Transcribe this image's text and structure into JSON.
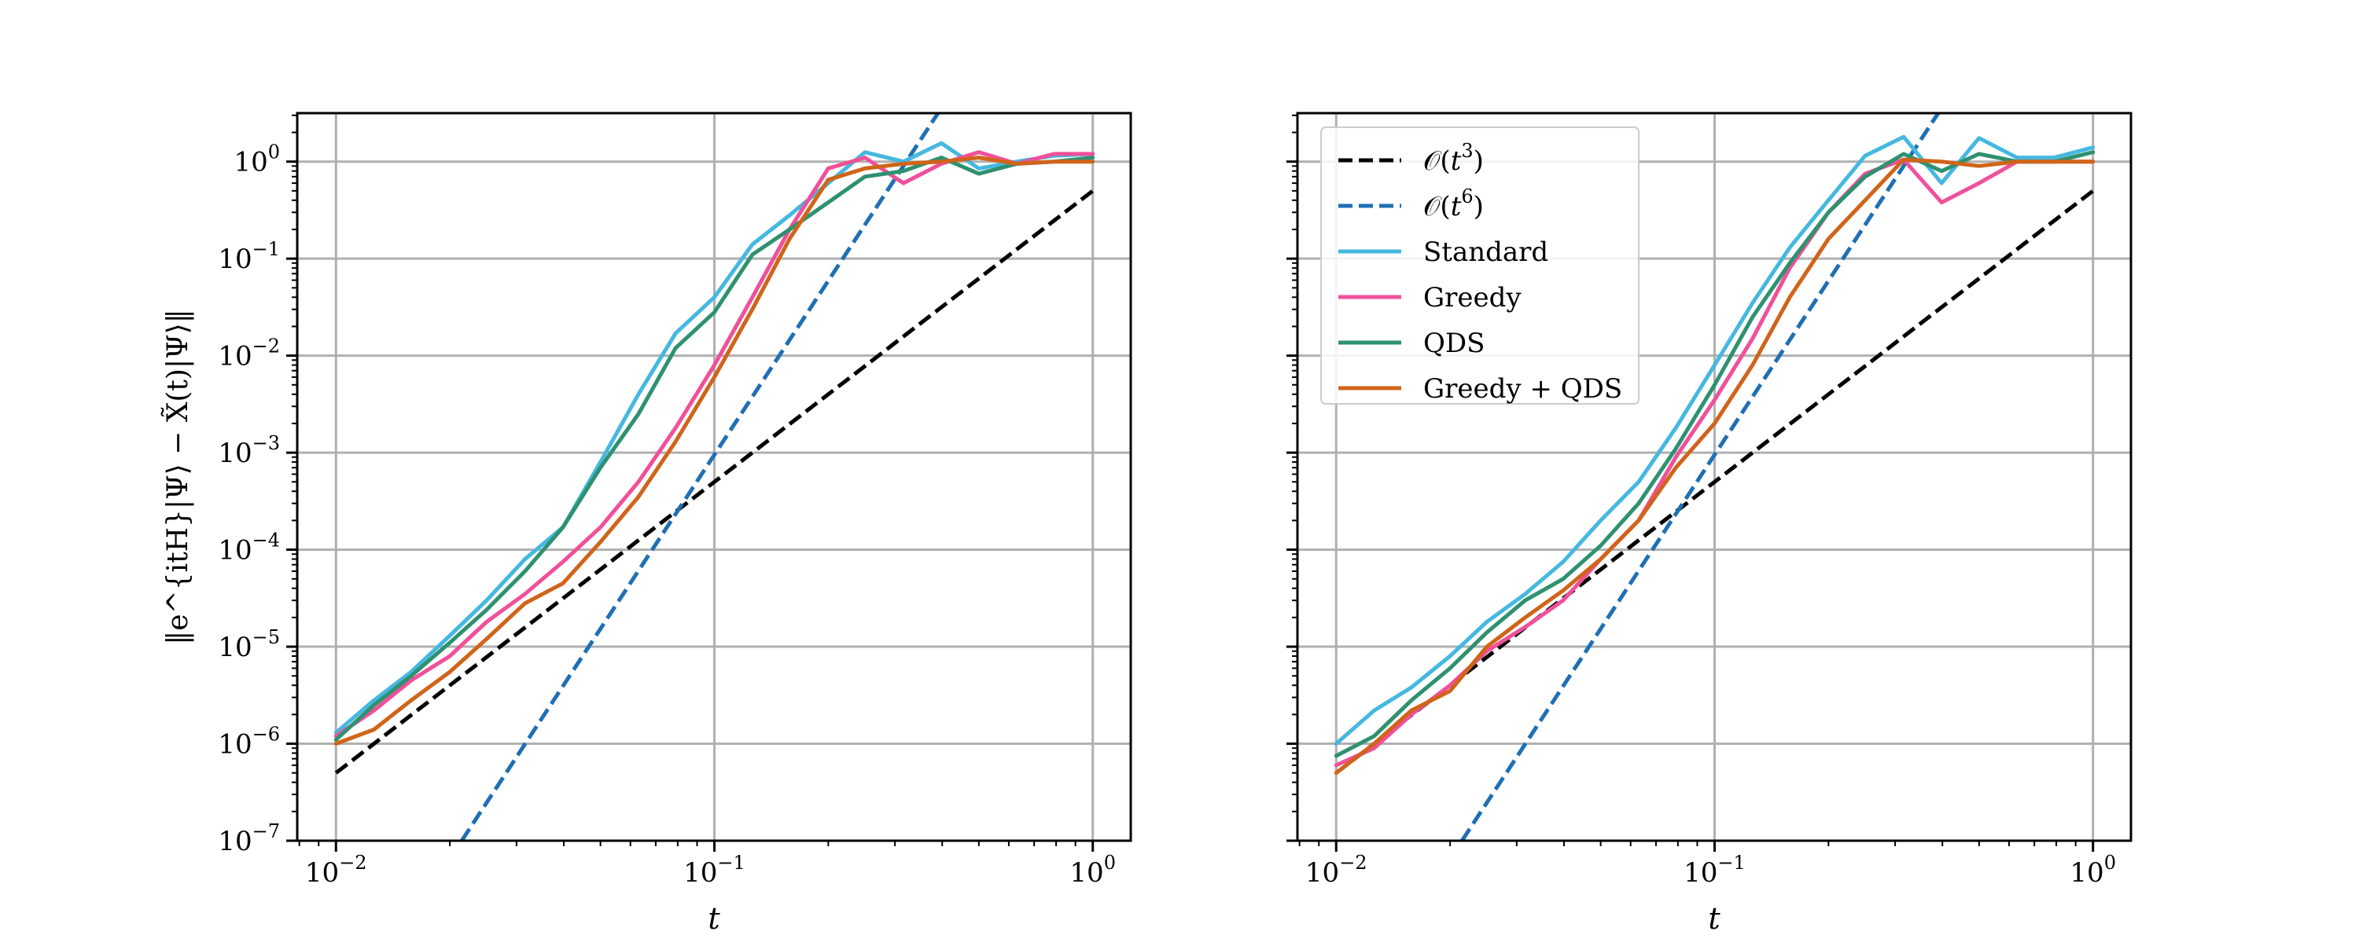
{
  "figure": {
    "ylabel": "‖e^{itH}|Ψ⟩ − X̃(t)|Ψ⟩‖",
    "colors": {
      "ref_t3": "#000000",
      "ref_t6": "#1f6fb4",
      "Standard": "#45b8e0",
      "Greedy": "#f0509a",
      "QDS": "#2e9170",
      "Greedy + QDS": "#d0641a",
      "grid": "#b0b0b0"
    }
  },
  "chart_data": [
    {
      "type": "line",
      "panel": "left",
      "xlabel": "t",
      "ylabel": "‖e^{itH}|Ψ⟩ − X̃(t)|Ψ⟩‖",
      "xscale": "log",
      "yscale": "log",
      "xlim": [
        0.0079,
        1.26
      ],
      "ylim": [
        1e-07,
        3.16
      ],
      "grid": true,
      "legend": false,
      "xticks": [
        {
          "value": 0.01,
          "base": "10",
          "exp": "−2"
        },
        {
          "value": 0.1,
          "base": "10",
          "exp": "−1"
        },
        {
          "value": 1,
          "base": "10",
          "exp": "0"
        }
      ],
      "yticks": [
        {
          "value": 1e-07,
          "base": "10",
          "exp": "−7"
        },
        {
          "value": 1e-06,
          "base": "10",
          "exp": "−6"
        },
        {
          "value": 1e-05,
          "base": "10",
          "exp": "−5"
        },
        {
          "value": 0.0001,
          "base": "10",
          "exp": "−4"
        },
        {
          "value": 0.001,
          "base": "10",
          "exp": "−3"
        },
        {
          "value": 0.01,
          "base": "10",
          "exp": "−2"
        },
        {
          "value": 0.1,
          "base": "10",
          "exp": "−1"
        },
        {
          "value": 1,
          "base": "10",
          "exp": "0"
        }
      ],
      "series": [
        {
          "name": "O(t^3)",
          "key": "ref_t3",
          "dash": true,
          "x": [
            0.01,
            1.0
          ],
          "y": [
            5e-07,
            0.5
          ]
        },
        {
          "name": "O(t^6)",
          "key": "ref_t6",
          "dash": true,
          "x": [
            0.0215,
            0.39
          ],
          "y": [
            1e-07,
            3.16
          ]
        },
        {
          "name": "Standard",
          "key": "Standard",
          "dash": false,
          "x": [
            0.01,
            0.0126,
            0.0158,
            0.02,
            0.025,
            0.0316,
            0.0398,
            0.05,
            0.063,
            0.079,
            0.1,
            0.126,
            0.158,
            0.2,
            0.25,
            0.316,
            0.398,
            0.5,
            0.63,
            0.79,
            1.0
          ],
          "y": [
            1.3e-06,
            2.8e-06,
            5.5e-06,
            1.3e-05,
            3e-05,
            8e-05,
            0.00017,
            0.0008,
            0.004,
            0.017,
            0.04,
            0.14,
            0.28,
            0.6,
            1.25,
            1.0,
            1.55,
            0.85,
            1.0,
            1.15,
            1.2
          ]
        },
        {
          "name": "Greedy",
          "key": "Greedy",
          "dash": false,
          "x": [
            0.01,
            0.0126,
            0.0158,
            0.02,
            0.025,
            0.0316,
            0.0398,
            0.05,
            0.063,
            0.079,
            0.1,
            0.126,
            0.158,
            0.2,
            0.25,
            0.316,
            0.398,
            0.5,
            0.63,
            0.79,
            1.0
          ],
          "y": [
            1.2e-06,
            2.2e-06,
            4.5e-06,
            8e-06,
            1.8e-05,
            3.5e-05,
            7.5e-05,
            0.00017,
            0.0005,
            0.0018,
            0.008,
            0.04,
            0.2,
            0.85,
            1.1,
            0.6,
            0.95,
            1.25,
            0.95,
            1.2,
            1.2
          ]
        },
        {
          "name": "QDS",
          "key": "QDS",
          "dash": false,
          "x": [
            0.01,
            0.0126,
            0.0158,
            0.02,
            0.025,
            0.0316,
            0.0398,
            0.05,
            0.063,
            0.079,
            0.1,
            0.126,
            0.158,
            0.2,
            0.25,
            0.316,
            0.398,
            0.5,
            0.63,
            0.79,
            1.0
          ],
          "y": [
            1.1e-06,
            2.5e-06,
            5e-06,
            1.1e-05,
            2.4e-05,
            6e-05,
            0.00017,
            0.0007,
            0.0025,
            0.012,
            0.028,
            0.11,
            0.2,
            0.38,
            0.7,
            0.8,
            1.1,
            0.75,
            0.95,
            1.0,
            1.1
          ]
        },
        {
          "name": "Greedy + QDS",
          "key": "Greedy + QDS",
          "dash": false,
          "x": [
            0.01,
            0.0126,
            0.0158,
            0.02,
            0.025,
            0.0316,
            0.0398,
            0.05,
            0.063,
            0.079,
            0.1,
            0.126,
            0.158,
            0.2,
            0.25,
            0.316,
            0.398,
            0.5,
            0.63,
            0.79,
            1.0
          ],
          "y": [
            1e-06,
            1.4e-06,
            2.8e-06,
            5.5e-06,
            1.2e-05,
            2.8e-05,
            4.5e-05,
            0.00012,
            0.00035,
            0.0013,
            0.006,
            0.03,
            0.16,
            0.65,
            0.85,
            0.95,
            1.0,
            1.1,
            0.95,
            1.0,
            1.0
          ]
        }
      ]
    },
    {
      "type": "line",
      "panel": "right",
      "xlabel": "t",
      "ylabel": "",
      "xscale": "log",
      "yscale": "log",
      "xlim": [
        0.0079,
        1.26
      ],
      "ylim": [
        1e-07,
        3.16
      ],
      "grid": true,
      "legend": "upper-left",
      "xticks": [
        {
          "value": 0.01,
          "base": "10",
          "exp": "−2"
        },
        {
          "value": 0.1,
          "base": "10",
          "exp": "−1"
        },
        {
          "value": 1,
          "base": "10",
          "exp": "0"
        }
      ],
      "yticks": [
        {
          "value": 1e-07
        },
        {
          "value": 1e-06
        },
        {
          "value": 1e-05
        },
        {
          "value": 0.0001
        },
        {
          "value": 0.001
        },
        {
          "value": 0.01
        },
        {
          "value": 0.1
        },
        {
          "value": 1
        }
      ],
      "series": [
        {
          "name": "O(t^3)",
          "key": "ref_t3",
          "dash": true,
          "x": [
            0.01,
            1.0
          ],
          "y": [
            5e-07,
            0.5
          ]
        },
        {
          "name": "O(t^6)",
          "key": "ref_t6",
          "dash": true,
          "x": [
            0.0215,
            0.39
          ],
          "y": [
            1e-07,
            3.16
          ]
        },
        {
          "name": "Standard",
          "key": "Standard",
          "dash": false,
          "x": [
            0.01,
            0.0126,
            0.0158,
            0.02,
            0.025,
            0.0316,
            0.0398,
            0.05,
            0.063,
            0.079,
            0.1,
            0.126,
            0.158,
            0.2,
            0.25,
            0.316,
            0.398,
            0.5,
            0.63,
            0.79,
            1.0
          ],
          "y": [
            1e-06,
            2.2e-06,
            3.8e-06,
            8e-06,
            1.8e-05,
            3.5e-05,
            7.5e-05,
            0.0002,
            0.0005,
            0.0018,
            0.008,
            0.035,
            0.13,
            0.4,
            1.15,
            1.8,
            0.6,
            1.75,
            1.1,
            1.1,
            1.4
          ]
        },
        {
          "name": "Greedy",
          "key": "Greedy",
          "dash": false,
          "x": [
            0.01,
            0.0126,
            0.0158,
            0.02,
            0.025,
            0.0316,
            0.0398,
            0.05,
            0.063,
            0.079,
            0.1,
            0.126,
            0.158,
            0.2,
            0.25,
            0.316,
            0.398,
            0.5,
            0.63,
            0.79,
            1.0
          ],
          "y": [
            6e-07,
            9e-07,
            2e-06,
            4e-06,
            9e-06,
            1.6e-05,
            3e-05,
            8e-05,
            0.0002,
            0.0009,
            0.0035,
            0.015,
            0.08,
            0.3,
            0.75,
            1.05,
            0.38,
            0.6,
            1.0,
            1.0,
            1.0
          ]
        },
        {
          "name": "QDS",
          "key": "QDS",
          "dash": false,
          "x": [
            0.01,
            0.0126,
            0.0158,
            0.02,
            0.025,
            0.0316,
            0.0398,
            0.05,
            0.063,
            0.079,
            0.1,
            0.126,
            0.158,
            0.2,
            0.25,
            0.316,
            0.398,
            0.5,
            0.63,
            0.79,
            1.0
          ],
          "y": [
            7.5e-07,
            1.2e-06,
            2.8e-06,
            6e-06,
            1.4e-05,
            3e-05,
            5e-05,
            0.00011,
            0.0003,
            0.0011,
            0.005,
            0.025,
            0.09,
            0.3,
            0.7,
            1.2,
            0.8,
            1.2,
            1.0,
            1.0,
            1.25
          ]
        },
        {
          "name": "Greedy + QDS",
          "key": "Greedy + QDS",
          "dash": false,
          "x": [
            0.01,
            0.0126,
            0.0158,
            0.02,
            0.025,
            0.0316,
            0.0398,
            0.05,
            0.063,
            0.079,
            0.1,
            0.126,
            0.158,
            0.2,
            0.25,
            0.316,
            0.398,
            0.5,
            0.63,
            0.79,
            1.0
          ],
          "y": [
            5e-07,
            1e-06,
            2.2e-06,
            3.5e-06,
            1e-05,
            2e-05,
            3.8e-05,
            8e-05,
            0.0002,
            0.0007,
            0.002,
            0.008,
            0.04,
            0.16,
            0.4,
            1.05,
            1.0,
            0.9,
            1.0,
            1.0,
            1.0
          ]
        }
      ]
    }
  ],
  "legend": [
    {
      "key": "ref_t3",
      "dash": true,
      "pre": "𝒪(",
      "var": "t",
      "exp": "3",
      "post": ")"
    },
    {
      "key": "ref_t6",
      "dash": true,
      "pre": "𝒪(",
      "var": "t",
      "exp": "6",
      "post": ")"
    },
    {
      "key": "Standard",
      "dash": false,
      "label": "Standard"
    },
    {
      "key": "Greedy",
      "dash": false,
      "label": "Greedy"
    },
    {
      "key": "QDS",
      "dash": false,
      "label": "QDS"
    },
    {
      "key": "Greedy + QDS",
      "dash": false,
      "label": "Greedy + QDS"
    }
  ]
}
